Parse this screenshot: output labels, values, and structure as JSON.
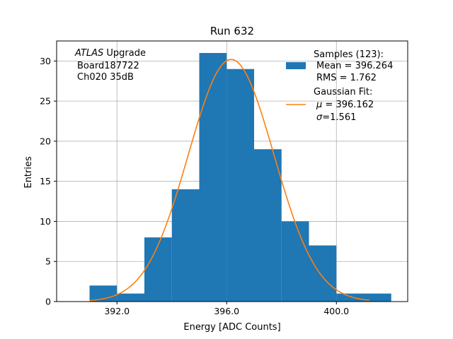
{
  "chart_data": {
    "type": "bar",
    "title": "Run 632",
    "xlabel": "Energy [ADC Counts]",
    "ylabel": "Entries",
    "xlim": [
      389.8,
      402.6
    ],
    "ylim": [
      0,
      32.5
    ],
    "grid": true,
    "xticks": [
      392.0,
      396.0,
      400.0
    ],
    "xtick_labels": [
      "392.0",
      "396.0",
      "400.0"
    ],
    "yticks": [
      0,
      5,
      10,
      15,
      20,
      25,
      30
    ],
    "ytick_labels": [
      "0",
      "5",
      "10",
      "15",
      "20",
      "25",
      "30"
    ],
    "histogram": {
      "name": "Samples",
      "color": "#1f77b4",
      "bins": [
        {
          "start": 391.0,
          "end": 392.0,
          "count": 2
        },
        {
          "start": 392.0,
          "end": 393.0,
          "count": 1
        },
        {
          "start": 393.0,
          "end": 394.0,
          "count": 8
        },
        {
          "start": 394.0,
          "end": 395.0,
          "count": 14
        },
        {
          "start": 395.0,
          "end": 396.0,
          "count": 31
        },
        {
          "start": 396.0,
          "end": 397.0,
          "count": 29
        },
        {
          "start": 397.0,
          "end": 398.0,
          "count": 19
        },
        {
          "start": 398.0,
          "end": 399.0,
          "count": 10
        },
        {
          "start": 399.0,
          "end": 400.0,
          "count": 7
        },
        {
          "start": 400.0,
          "end": 401.0,
          "count": 1
        },
        {
          "start": 401.0,
          "end": 402.0,
          "count": 1
        }
      ]
    },
    "fit": {
      "name": "Gaussian Fit",
      "color": "#ff7f0e",
      "mu": 396.162,
      "sigma": 1.561,
      "amplitude": 30.2,
      "x_range": [
        391.0,
        401.2
      ]
    },
    "annotation": {
      "experiment": "ATLAS",
      "experiment_suffix": " Upgrade",
      "board": "Board187722",
      "channel": "Ch020 35dB"
    },
    "legend": {
      "position": "top-right",
      "samples_line1": "Samples (123):",
      "samples_line2": "Mean = 396.264",
      "samples_line3": "RMS = 1.762",
      "fit_line1": "Gaussian Fit:",
      "fit_mu_symbol": "μ",
      "fit_mu_value": " = 396.162",
      "fit_sigma_symbol": "σ",
      "fit_sigma_value": "=1.561"
    }
  }
}
